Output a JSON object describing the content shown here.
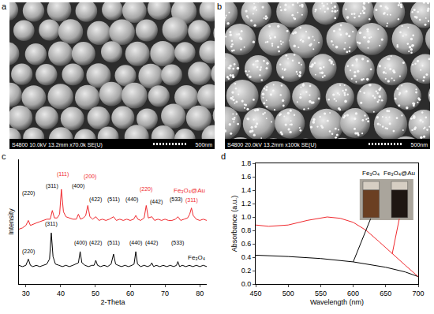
{
  "images": [
    {
      "label": "a",
      "info": "S4800 10.0kV 13.2mm x70.0k SE(U)",
      "scale": "500nm"
    },
    {
      "label": "b",
      "info": "S4800 20.0kV 13.2mm x100k SE(U)",
      "scale": "500nm"
    }
  ],
  "chart_data": [
    {
      "type": "line",
      "label": "c",
      "x_label": "2-Theta",
      "y_label": "Intensity",
      "xlim": [
        28,
        82
      ],
      "xticks": [
        30,
        40,
        50,
        60,
        70,
        80
      ],
      "ylim": [
        0,
        100
      ],
      "tick_labels": "x",
      "grid": false,
      "series": [
        {
          "name": "Fe₃O₄@Au",
          "color": "#f0282d",
          "label_x": 82,
          "label_y": 71,
          "x": [
            28,
            29,
            30,
            30.7,
            31.3,
            32,
            33,
            34,
            35,
            36,
            37,
            37.6,
            38.2,
            39,
            39.7,
            40.2,
            40.8,
            41.5,
            42.5,
            43.5,
            44.5,
            45.1,
            45.7,
            46.5,
            47.2,
            47.8,
            48.4,
            49.2,
            50.1,
            51,
            52,
            53,
            54,
            55.2,
            56,
            57,
            58,
            59,
            60,
            61,
            61.6,
            62.2,
            63,
            64,
            64.6,
            65.2,
            66.2,
            67,
            68,
            69,
            70,
            71,
            72,
            73,
            73.7,
            74.5,
            75.5,
            76.5,
            77.1,
            77.6,
            78.1,
            79,
            80,
            81,
            82
          ],
          "values": [
            44,
            45,
            47,
            51,
            47,
            48,
            49,
            50,
            51,
            52,
            52,
            59,
            53,
            53,
            56,
            76,
            58,
            54,
            53,
            52,
            52,
            56,
            52,
            53,
            55,
            63,
            54,
            52,
            54,
            51,
            52,
            51,
            52,
            54,
            51,
            52,
            51,
            52,
            51,
            52,
            55,
            52,
            51,
            53,
            63,
            53,
            54,
            51,
            52,
            51,
            52,
            51,
            51,
            52,
            54,
            51,
            52,
            53,
            56,
            61,
            55,
            52,
            51,
            52,
            51
          ]
        },
        {
          "name": "Fe₃O₄",
          "color": "#000000",
          "label_x": 82,
          "label_y": 17,
          "x": [
            28,
            29,
            30,
            30.7,
            31.3,
            32,
            33,
            34,
            35,
            36,
            36.8,
            37.3,
            37.8,
            38.5,
            39.5,
            40.5,
            41.5,
            42.5,
            43.5,
            44.5,
            45.1,
            45.6,
            46.1,
            47,
            48,
            49,
            49.6,
            50.1,
            50.6,
            51.5,
            52.5,
            53.5,
            54.5,
            55.2,
            55.8,
            56.5,
            57.5,
            58.5,
            59.5,
            60.5,
            61.1,
            61.6,
            62.1,
            63,
            64,
            65,
            65.8,
            66.2,
            66.7,
            67.5,
            68.5,
            69.5,
            70.5,
            71.5,
            72.5,
            73.3,
            73.7,
            74.2,
            75,
            76,
            77,
            78,
            79,
            80,
            81,
            82
          ],
          "values": [
            15,
            14,
            15,
            20,
            15,
            14,
            15,
            14,
            15,
            16,
            20,
            41,
            22,
            16,
            15,
            14,
            15,
            14,
            15,
            16,
            17,
            26,
            17,
            15,
            14,
            15,
            15,
            19,
            15,
            14,
            15,
            14,
            16,
            24,
            16,
            15,
            14,
            15,
            14,
            15,
            16,
            26,
            16,
            14,
            15,
            14,
            15,
            17,
            14,
            15,
            14,
            15,
            14,
            15,
            14,
            15,
            18,
            14,
            15,
            14,
            15,
            14,
            15,
            14,
            15,
            14
          ]
        }
      ],
      "annotations": [
        {
          "text": "(220)",
          "x": 30.7,
          "y": 69,
          "color": "#000000"
        },
        {
          "text": "(311)",
          "x": 37.6,
          "y": 75,
          "color": "#000000"
        },
        {
          "text": "(111)",
          "x": 40.5,
          "y": 84,
          "color": "#f0282d"
        },
        {
          "text": "(400)",
          "x": 45.1,
          "y": 75,
          "color": "#000000"
        },
        {
          "text": "(200)",
          "x": 48.5,
          "y": 82,
          "color": "#f0282d"
        },
        {
          "text": "(422)",
          "x": 50.1,
          "y": 64,
          "color": "#000000"
        },
        {
          "text": "(511)",
          "x": 55.2,
          "y": 64,
          "color": "#000000"
        },
        {
          "text": "(440)",
          "x": 60.5,
          "y": 64,
          "color": "#000000"
        },
        {
          "text": "(220)",
          "x": 64.6,
          "y": 72,
          "color": "#f0282d"
        },
        {
          "text": "(442)",
          "x": 67.5,
          "y": 62,
          "color": "#000000"
        },
        {
          "text": "(533)",
          "x": 73.2,
          "y": 64,
          "color": "#000000"
        },
        {
          "text": "(311)",
          "x": 77.8,
          "y": 63,
          "color": "#f0282d"
        },
        {
          "text": "(220)",
          "x": 30.7,
          "y": 22,
          "color": "#000000"
        },
        {
          "text": "(311)",
          "x": 37.4,
          "y": 44,
          "color": "#000000"
        },
        {
          "text": "(400)",
          "x": 45.6,
          "y": 29,
          "color": "#000000"
        },
        {
          "text": "(422)",
          "x": 50.1,
          "y": 29,
          "color": "#000000"
        },
        {
          "text": "(511)",
          "x": 55.2,
          "y": 29,
          "color": "#000000"
        },
        {
          "text": "(440)",
          "x": 61.6,
          "y": 29,
          "color": "#000000"
        },
        {
          "text": "(442)",
          "x": 66.2,
          "y": 29,
          "color": "#000000"
        },
        {
          "text": "(533)",
          "x": 73.7,
          "y": 29,
          "color": "#000000"
        }
      ]
    },
    {
      "type": "line",
      "label": "d",
      "x_label": "Wavelength (nm)",
      "y_label": "Absorbance (a.u.)",
      "xlim": [
        450,
        700
      ],
      "xticks": [
        450,
        500,
        550,
        600,
        650,
        700
      ],
      "ylim": [
        0,
        1.8
      ],
      "yticks": [
        {
          "value": 0,
          "label": "0.0"
        },
        0.2,
        0.4,
        0.6,
        0.8,
        {
          "value": 1,
          "label": "1.0"
        },
        1.2,
        1.4,
        1.6,
        1.8
      ],
      "grid": false,
      "series": [
        {
          "name": "Fe₃O₄",
          "color": "#000000",
          "x": [
            450,
            500,
            550,
            600,
            650,
            680,
            700
          ],
          "values": [
            0.43,
            0.41,
            0.38,
            0.33,
            0.25,
            0.18,
            0.11
          ]
        },
        {
          "name": "Fe₃O₄@Au",
          "color": "#f0282d",
          "x": [
            450,
            470,
            500,
            530,
            560,
            580,
            600,
            620,
            640,
            660,
            680,
            700
          ],
          "values": [
            0.88,
            0.86,
            0.88,
            0.95,
            1.0,
            0.98,
            0.92,
            0.8,
            0.63,
            0.45,
            0.28,
            0.11
          ]
        }
      ]
    }
  ]
}
